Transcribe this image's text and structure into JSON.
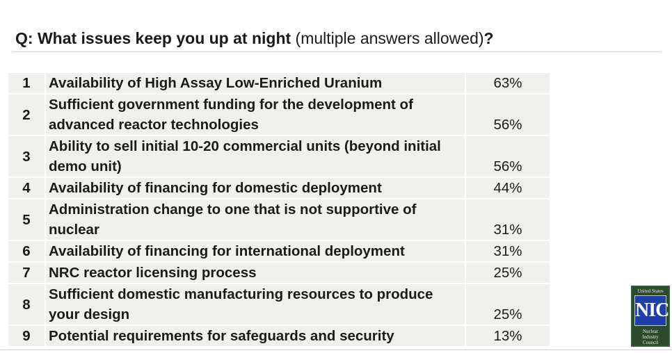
{
  "question": {
    "prefix": "Q: What issues keep you up at night",
    "note": " (multiple answers allowed)",
    "suffix": "?"
  },
  "rows": [
    {
      "rank": "1",
      "label": "Availability of High Assay Low-Enriched Uranium",
      "pct": "63%"
    },
    {
      "rank": "2",
      "label": "Sufficient government funding for the development of advanced reactor technologies",
      "pct": "56%"
    },
    {
      "rank": "3",
      "label": "Ability to sell initial 10-20 commercial units (beyond initial demo unit)",
      "pct": "56%"
    },
    {
      "rank": "4",
      "label": "Availability of financing for domestic deployment",
      "pct": "44%"
    },
    {
      "rank": "5",
      "label": "Administration change to one that is not supportive of nuclear",
      "pct": "31%"
    },
    {
      "rank": "6",
      "label": "Availability of financing for international deployment",
      "pct": "31%"
    },
    {
      "rank": "7",
      "label": "NRC reactor licensing process",
      "pct": "25%"
    },
    {
      "rank": "8",
      "label": "Sufficient domestic manufacturing resources to produce your design",
      "pct": "25%"
    },
    {
      "rank": "9",
      "label": "Potential requirements for safeguards and security",
      "pct": "13%"
    }
  ],
  "logo": {
    "top": "United States",
    "mark": "NIC",
    "line1": "Nuclear",
    "line2": "Industry",
    "line3": "Council"
  },
  "colors": {
    "row_background": "#f0f0ec",
    "logo_background": "#2c4a2c",
    "logo_mark": "#1f3fa8"
  }
}
